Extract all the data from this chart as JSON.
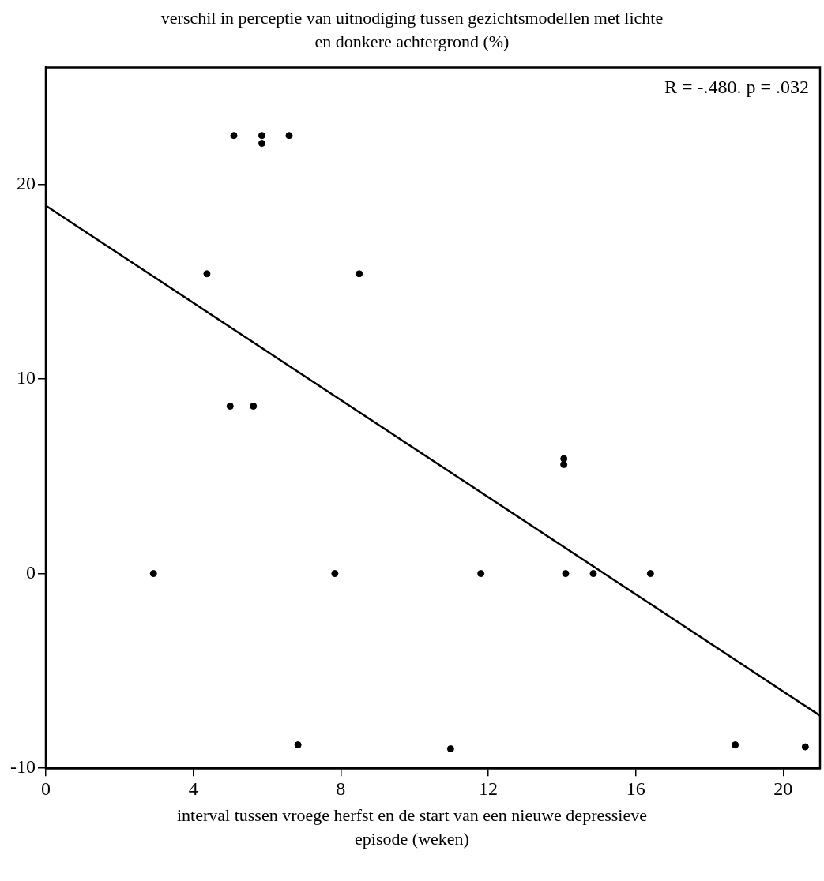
{
  "chart_data": {
    "type": "scatter",
    "ylabel": "verschil in perceptie van uitnodiging tussen gezichtsmodellen met lichte en donkere achtergrond (%)",
    "xlabel": "interval tussen vroege herfst en de start van een nieuwe depressieve episode (weken)",
    "annotations": [
      "R = -.480. p = .032"
    ],
    "xlim": [
      0,
      21
    ],
    "xticks": [
      0,
      4,
      8,
      12,
      16,
      20
    ],
    "ylim": [
      -10,
      26
    ],
    "yticks": [
      -10,
      0,
      10,
      20
    ],
    "grid": false,
    "legend": false,
    "series": [
      {
        "marker": "circle",
        "color": "#000000",
        "x": [
          5.1,
          5.86,
          5.86,
          6.6,
          4.37,
          8.5,
          5.0,
          5.63,
          2.92,
          7.84,
          14.05,
          14.05,
          11.8,
          14.1,
          14.85,
          16.4,
          6.84,
          10.98,
          18.7,
          20.6
        ],
        "values": [
          22.5,
          22.5,
          22.1,
          22.5,
          15.4,
          15.4,
          8.6,
          8.6,
          0,
          0,
          5.9,
          5.6,
          0,
          0,
          0,
          0,
          -8.8,
          -9.0,
          -8.8,
          -8.9
        ]
      },
      {
        "type": "line",
        "marker": "none",
        "color": "#000000",
        "line_style": "solid",
        "x": [
          0,
          21
        ],
        "values": [
          18.9,
          -7.3
        ]
      }
    ]
  }
}
